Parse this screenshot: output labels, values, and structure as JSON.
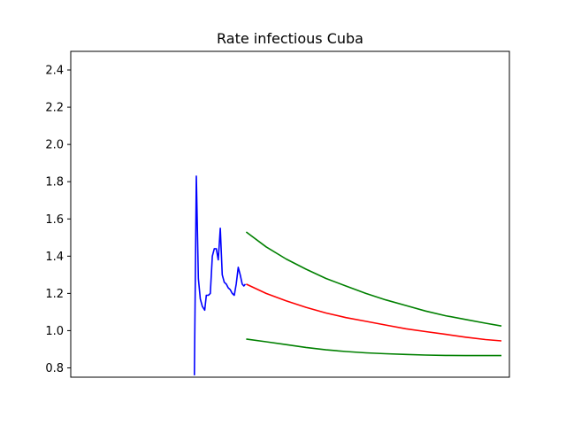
{
  "chart_data": {
    "type": "line",
    "title": "Rate infectious Cuba",
    "xlabel": "",
    "ylabel": "",
    "xlim": [
      0,
      110
    ],
    "ylim": [
      0.75,
      2.5
    ],
    "y_ticks": [
      "0.8",
      "1.0",
      "1.2",
      "1.4",
      "1.6",
      "1.8",
      "2.0",
      "2.2",
      "2.4"
    ],
    "x_ticks": [],
    "grid": false,
    "series": [
      {
        "color": "#0000ff",
        "x": [
          31,
          31.5,
          32,
          32.5,
          33,
          33.6,
          34,
          34.5,
          35,
          35.5,
          36,
          36.5,
          37,
          37.5,
          38,
          38.5,
          39,
          39.5,
          40,
          40.5,
          41,
          41.5,
          42,
          42.5,
          43,
          43.4,
          43.8
        ],
        "y": [
          0.76,
          1.83,
          1.28,
          1.17,
          1.13,
          1.11,
          1.19,
          1.19,
          1.2,
          1.4,
          1.44,
          1.44,
          1.38,
          1.55,
          1.3,
          1.26,
          1.25,
          1.23,
          1.22,
          1.2,
          1.19,
          1.25,
          1.34,
          1.3,
          1.25,
          1.24,
          1.25
        ]
      },
      {
        "color": "#ff0000",
        "x": [
          44,
          49,
          54,
          59,
          64,
          69,
          74,
          79,
          84,
          89,
          94,
          99,
          104,
          108
        ],
        "y": [
          1.25,
          1.2,
          1.16,
          1.125,
          1.095,
          1.07,
          1.05,
          1.03,
          1.01,
          0.995,
          0.98,
          0.965,
          0.952,
          0.945
        ]
      },
      {
        "color": "#008000",
        "x": [
          44,
          49,
          54,
          59,
          64,
          69,
          74,
          79,
          84,
          89,
          94,
          99,
          104,
          108
        ],
        "y": [
          1.53,
          1.45,
          1.385,
          1.33,
          1.28,
          1.24,
          1.2,
          1.165,
          1.135,
          1.105,
          1.08,
          1.06,
          1.04,
          1.025
        ]
      },
      {
        "color": "#008000",
        "x": [
          44,
          49,
          54,
          59,
          64,
          69,
          74,
          79,
          84,
          89,
          94,
          99,
          104,
          108
        ],
        "y": [
          0.955,
          0.94,
          0.925,
          0.91,
          0.897,
          0.888,
          0.881,
          0.876,
          0.872,
          0.869,
          0.867,
          0.866,
          0.866,
          0.866
        ]
      }
    ]
  }
}
